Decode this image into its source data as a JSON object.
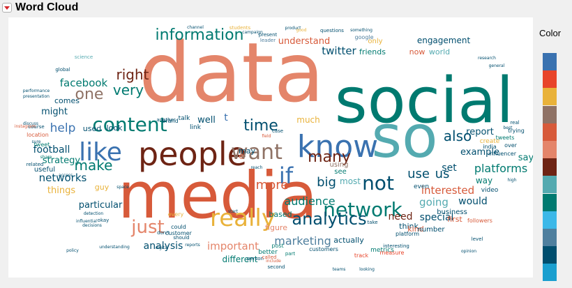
{
  "header": {
    "title": "Word Cloud"
  },
  "legend": {
    "title": "Color"
  },
  "palette": [
    "#3a72b0",
    "#e8442a",
    "#e9b23a",
    "#8f7265",
    "#d75a3a",
    "#e4856a",
    "#6e2414",
    "#54aab0",
    "#007a70",
    "#3cb8e8",
    "#4f7f9e",
    "#004e6e",
    "#1a9fcf"
  ],
  "chart_data": {
    "type": "wordcloud",
    "words": [
      {
        "text": "data",
        "color": 5
      },
      {
        "text": "social",
        "color": 8
      },
      {
        "text": "media",
        "color": 4
      },
      {
        "text": "so",
        "color": 7
      },
      {
        "text": "people",
        "color": 6
      },
      {
        "text": "know",
        "color": 0
      },
      {
        "text": "like",
        "color": 0
      },
      {
        "text": "want",
        "color": 3
      },
      {
        "text": "really",
        "color": 2
      },
      {
        "text": "content",
        "color": 8
      },
      {
        "text": "if",
        "color": 0
      },
      {
        "text": "not",
        "color": 11
      },
      {
        "text": "network",
        "color": 8
      },
      {
        "text": "analytics",
        "color": 11
      },
      {
        "text": "information",
        "color": 8
      },
      {
        "text": "time",
        "color": 11
      },
      {
        "text": "right",
        "color": 6
      },
      {
        "text": "very",
        "color": 8
      },
      {
        "text": "one",
        "color": 3
      },
      {
        "text": "just",
        "color": 5
      },
      {
        "text": "many",
        "color": 6
      },
      {
        "text": "make",
        "color": 8
      },
      {
        "text": "audience",
        "color": 8
      },
      {
        "text": "also",
        "color": 11
      },
      {
        "text": "use",
        "color": 11
      },
      {
        "text": "us",
        "color": 11
      },
      {
        "text": "more",
        "color": 4
      },
      {
        "text": "big",
        "color": 11
      },
      {
        "text": "platforms",
        "color": 8
      },
      {
        "text": "help",
        "color": 0
      },
      {
        "text": "facebook",
        "color": 8
      },
      {
        "text": "twitter",
        "color": 11
      },
      {
        "text": "networks",
        "color": 11
      },
      {
        "text": "interested",
        "color": 4
      },
      {
        "text": "going",
        "color": 7
      },
      {
        "text": "marketing",
        "color": 10
      },
      {
        "text": "important",
        "color": 5
      },
      {
        "text": "analysis",
        "color": 11
      },
      {
        "text": "football",
        "color": 11
      },
      {
        "text": "strategy",
        "color": 8
      },
      {
        "text": "things",
        "color": 2
      },
      {
        "text": "particular",
        "color": 11
      },
      {
        "text": "might",
        "color": 11
      },
      {
        "text": "report",
        "color": 11
      },
      {
        "text": "example",
        "color": 11
      },
      {
        "text": "need",
        "color": 6
      },
      {
        "text": "special",
        "color": 11
      },
      {
        "text": "would",
        "color": 11
      },
      {
        "text": "set",
        "color": 11
      },
      {
        "text": "way",
        "color": 8
      },
      {
        "text": "most",
        "color": 7
      },
      {
        "text": "understand",
        "color": 4
      },
      {
        "text": "engagement",
        "color": 11
      },
      {
        "text": "friends",
        "color": 8
      },
      {
        "text": "world",
        "color": 7
      },
      {
        "text": "now",
        "color": 4
      },
      {
        "text": "comes",
        "color": 11
      },
      {
        "text": "well",
        "color": 11
      },
      {
        "text": "much",
        "color": 2
      },
      {
        "text": "say",
        "color": 8
      },
      {
        "text": "actually",
        "color": 11
      },
      {
        "text": "different",
        "color": 8
      },
      {
        "text": "figure",
        "color": 5
      },
      {
        "text": "based",
        "color": 8
      },
      {
        "text": "think",
        "color": 11
      },
      {
        "text": "guy",
        "color": 2
      },
      {
        "text": "kind",
        "color": 4
      },
      {
        "text": "first",
        "color": 4
      },
      {
        "text": "business",
        "color": 11
      },
      {
        "text": "number",
        "color": 11
      },
      {
        "text": "only",
        "color": 2
      },
      {
        "text": "t",
        "color": 0
      },
      {
        "text": "e",
        "color": 5
      },
      {
        "text": "may",
        "color": 11
      },
      {
        "text": "look",
        "color": 11
      },
      {
        "text": "used",
        "color": 11
      },
      {
        "text": "see",
        "color": 8
      },
      {
        "text": "using",
        "color": 3
      },
      {
        "text": "video",
        "color": 11
      },
      {
        "text": "even",
        "color": 11
      },
      {
        "text": "better",
        "color": 8
      },
      {
        "text": "post",
        "color": 8
      },
      {
        "text": "customers",
        "color": 11
      },
      {
        "text": "track",
        "color": 1
      },
      {
        "text": "metrics",
        "color": 8
      },
      {
        "text": "useful",
        "color": 11
      },
      {
        "text": "every",
        "color": 2
      },
      {
        "text": "could",
        "color": 11
      },
      {
        "text": "customer",
        "color": 11
      },
      {
        "text": "link",
        "color": 11
      },
      {
        "text": "talk",
        "color": 11
      },
      {
        "text": "brand",
        "color": 11
      },
      {
        "text": "create",
        "color": 2
      },
      {
        "text": "influencer",
        "color": 11
      },
      {
        "text": "india",
        "color": 11
      },
      {
        "text": "trying",
        "color": 11
      },
      {
        "text": "google",
        "color": 10
      },
      {
        "text": "questions",
        "color": 11
      },
      {
        "text": "present",
        "color": 11
      },
      {
        "text": "leader",
        "color": 10
      },
      {
        "text": "product",
        "color": 11
      },
      {
        "text": "good",
        "color": 2
      },
      {
        "text": "students",
        "color": 2
      },
      {
        "text": "second",
        "color": 11
      },
      {
        "text": "person",
        "color": 11
      },
      {
        "text": "called",
        "color": 4
      },
      {
        "text": "part",
        "color": 8
      },
      {
        "text": "measure",
        "color": 1
      },
      {
        "text": "platform",
        "color": 11
      },
      {
        "text": "interesting",
        "color": 11
      },
      {
        "text": "okay",
        "color": 11
      },
      {
        "text": "should",
        "color": 11
      },
      {
        "text": "level",
        "color": 11
      },
      {
        "text": "followers",
        "color": 4
      },
      {
        "text": "start",
        "color": 11
      },
      {
        "text": "location",
        "color": 4
      },
      {
        "text": "course",
        "color": 11
      },
      {
        "text": "discuss",
        "color": 11
      },
      {
        "text": "related",
        "color": 11
      },
      {
        "text": "another",
        "color": 11
      },
      {
        "text": "space",
        "color": 11
      },
      {
        "text": "access",
        "color": 11
      },
      {
        "text": "reports",
        "color": 11
      },
      {
        "text": "detection",
        "color": 11
      },
      {
        "text": "influential",
        "color": 11
      },
      {
        "text": "decisions",
        "color": 11
      },
      {
        "text": "understanding",
        "color": 11
      },
      {
        "text": "tweet",
        "color": 8
      },
      {
        "text": "share",
        "color": 8
      },
      {
        "text": "sure",
        "color": 11
      },
      {
        "text": "performance",
        "color": 11
      },
      {
        "text": "presentation",
        "color": 11
      },
      {
        "text": "instagram",
        "color": 4
      },
      {
        "text": "campaign",
        "color": 11
      },
      {
        "text": "global",
        "color": 11
      },
      {
        "text": "tweets",
        "color": 8
      },
      {
        "text": "over",
        "color": 11
      },
      {
        "text": "real",
        "color": 11
      },
      {
        "text": "best",
        "color": 11
      },
      {
        "text": "high",
        "color": 11
      },
      {
        "text": "science",
        "color": 7
      },
      {
        "text": "channel",
        "color": 11
      },
      {
        "text": "don't",
        "color": 11
      },
      {
        "text": "take",
        "color": 11
      },
      {
        "text": "include",
        "color": 4
      },
      {
        "text": "something",
        "color": 11
      },
      {
        "text": "looking",
        "color": 11
      },
      {
        "text": "digital",
        "color": 11
      },
      {
        "text": "reach",
        "color": 11
      },
      {
        "text": "case",
        "color": 11
      },
      {
        "text": "field",
        "color": 4
      },
      {
        "text": "opinion",
        "color": 11
      },
      {
        "text": "teams",
        "color": 11
      },
      {
        "text": "research",
        "color": 11
      },
      {
        "text": "general",
        "color": 11
      },
      {
        "text": "policy",
        "color": 11
      }
    ]
  }
}
